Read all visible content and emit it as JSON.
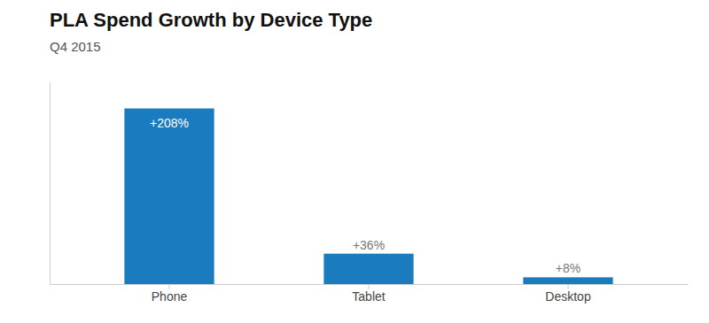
{
  "chart_data": {
    "type": "bar",
    "title": "PLA Spend Growth by Device Type",
    "subtitle": "Q4 2015",
    "categories": [
      "Phone",
      "Tablet",
      "Desktop"
    ],
    "values": [
      208,
      36,
      8
    ],
    "value_labels": [
      "+208%",
      "+36%",
      "+8%"
    ],
    "data_labels": true,
    "color": "#1a7bbf",
    "ylim": [
      0,
      240
    ],
    "tick_labels": "x",
    "grid": false
  }
}
